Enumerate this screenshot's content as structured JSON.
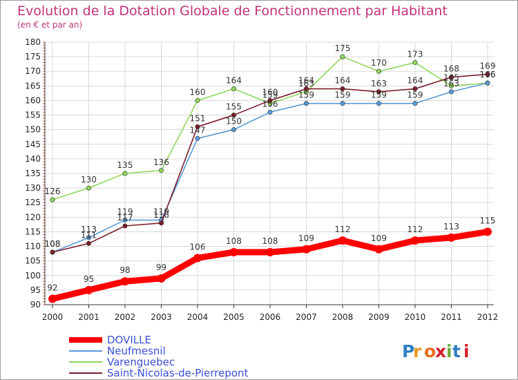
{
  "chart_data": {
    "type": "line",
    "title": "Evolution de la Dotation Globale de Fonctionnement par Habitant",
    "subtitle": "(en € et par an)",
    "xlabel": "",
    "ylabel": "",
    "x": [
      "2000",
      "2001",
      "2002",
      "2003",
      "2004",
      "2005",
      "2006",
      "2007",
      "2008",
      "2009",
      "2010",
      "2011",
      "2012"
    ],
    "ylim": [
      90,
      180
    ],
    "yticks": [
      90,
      95,
      100,
      105,
      110,
      115,
      120,
      125,
      130,
      135,
      140,
      145,
      150,
      155,
      160,
      165,
      170,
      175,
      180
    ],
    "grid": true,
    "legend_position": "bottom-left",
    "series": [
      {
        "name": "DOVILLE",
        "color": "#ff0000",
        "values": [
          92,
          95,
          98,
          99,
          106,
          108,
          108,
          109,
          112,
          109,
          112,
          113,
          115
        ]
      },
      {
        "name": "Neufmesnil",
        "color": "#5a9bd5",
        "values": [
          108,
          113,
          119,
          119,
          147,
          150,
          156,
          159,
          159,
          159,
          159,
          163,
          166
        ]
      },
      {
        "name": "Varenguebec",
        "color": "#8fd65c",
        "values": [
          126,
          130,
          135,
          136,
          160,
          164,
          159,
          163,
          175,
          170,
          173,
          165,
          166
        ]
      },
      {
        "name": "Saint-Nicolas-de-Pierrepont",
        "color": "#7a1c2a",
        "values": [
          108,
          111,
          117,
          118,
          151,
          155,
          160,
          164,
          164,
          163,
          164,
          168,
          169
        ]
      }
    ]
  },
  "logo": {
    "text": "Proxiti"
  }
}
